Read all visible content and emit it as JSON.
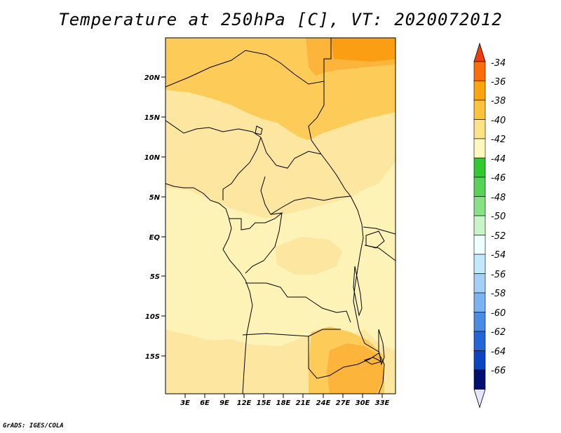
{
  "title": "Temperature at 250hPa [C], VT: 2020072012",
  "credit": "GrADS: IGES/COLA",
  "map": {
    "lat_ticks": [
      "20N",
      "15N",
      "10N",
      "5N",
      "EQ",
      "5S",
      "10S",
      "15S"
    ],
    "lon_ticks": [
      "3E",
      "6E",
      "9E",
      "12E",
      "15E",
      "18E",
      "21E",
      "24E",
      "27E",
      "30E",
      "33E"
    ]
  },
  "colorbar": {
    "labels": [
      "-34",
      "-36",
      "-38",
      "-40",
      "-42",
      "-44",
      "-46",
      "-48",
      "-50",
      "-52",
      "-54",
      "-56",
      "-58",
      "-60",
      "-62",
      "-64",
      "-66"
    ],
    "colors": [
      "#f03c0c",
      "#fa6e0a",
      "#fca50f",
      "#fdc33c",
      "#fde287",
      "#fef8be",
      "#32c832",
      "#5ad25a",
      "#87e187",
      "#c8f5c8",
      "#eeffff",
      "#c2e8fb",
      "#a5cff7",
      "#7cb2ef",
      "#4a8be4",
      "#2466d6",
      "#0a44c0",
      "#001070",
      "#e6e6fa"
    ]
  }
}
